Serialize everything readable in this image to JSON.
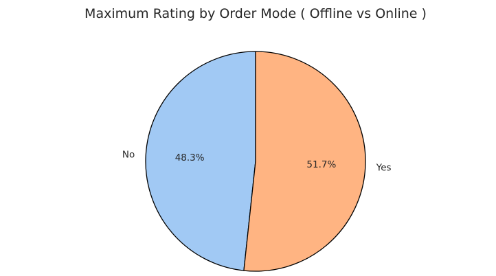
{
  "chart_data": {
    "type": "pie",
    "title": "Maximum Rating by Order Mode ( Offline vs Online )",
    "categories": [
      "No",
      "Yes"
    ],
    "values": [
      48.3,
      51.7
    ],
    "value_labels": [
      "48.3%",
      "51.7%"
    ],
    "colors": [
      "#a1c9f4",
      "#ffb482"
    ],
    "edge_color": "#000000",
    "start_angle_deg": 90,
    "direction": "counterclockwise",
    "legend": "none"
  }
}
